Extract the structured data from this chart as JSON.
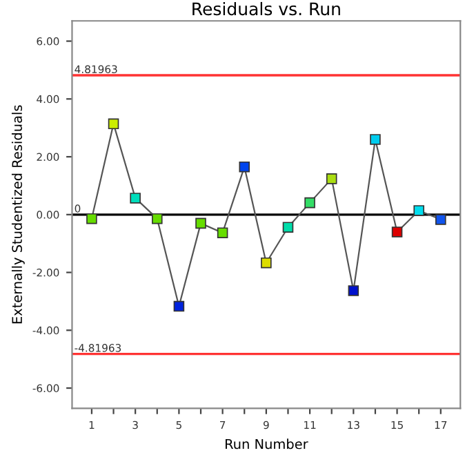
{
  "chart_data": {
    "type": "line",
    "title": "Residuals vs. Run",
    "xlabel": "Run Number",
    "ylabel": "Externally Studentized Residuals",
    "x": [
      1,
      2,
      3,
      4,
      5,
      6,
      7,
      8,
      9,
      10,
      11,
      12,
      13,
      14,
      15,
      16,
      17
    ],
    "series": [
      {
        "color": "#555555",
        "values": [
          -0.14,
          3.14,
          0.57,
          -0.14,
          -3.17,
          -0.3,
          -0.63,
          1.65,
          -1.67,
          -0.44,
          0.41,
          1.24,
          -2.63,
          2.6,
          -0.6,
          0.14,
          -0.17
        ],
        "colors": [
          "#66dd00",
          "#ccee00",
          "#00ddbb",
          "#66dd00",
          "#0022dd",
          "#66dd00",
          "#66dd00",
          "#0044ee",
          "#dddd00",
          "#00ddaa",
          "#33dd66",
          "#aadd11",
          "#0011cc",
          "#00ccee",
          "#dd0000",
          "#00ddee",
          "#1155ee"
        ]
      }
    ],
    "marker": "square",
    "xlim": [
      0.1,
      17.9
    ],
    "xticks": [
      1,
      {
        "value": 2,
        "label": null
      },
      3,
      {
        "value": 4,
        "label": null
      },
      5,
      {
        "value": 6,
        "label": null
      },
      7,
      {
        "value": 8,
        "label": null
      },
      9,
      {
        "value": 10,
        "label": null
      },
      11,
      {
        "value": 12,
        "label": null
      },
      13,
      {
        "value": 14,
        "label": null
      },
      15,
      {
        "value": 16,
        "label": null
      },
      17
    ],
    "ylim": [
      -6.7,
      6.7
    ],
    "yticks": [
      {
        "value": -6,
        "label": "-6.00"
      },
      {
        "value": -4,
        "label": "-4.00"
      },
      {
        "value": -2,
        "label": "-2.00"
      },
      {
        "value": 0,
        "label": "0.00"
      },
      {
        "value": 2,
        "label": "2.00"
      },
      {
        "value": 4,
        "label": "4.00"
      },
      {
        "value": 6,
        "label": "6.00"
      }
    ],
    "ref_lines": [
      {
        "axis": "y",
        "value": 4.81963,
        "label": "4.81963",
        "color": "#ff3333"
      },
      {
        "axis": "y",
        "value": 0,
        "label": "0",
        "color": "#000000"
      },
      {
        "axis": "y",
        "value": -4.81963,
        "label": "-4.81963",
        "color": "#ff3333"
      }
    ],
    "grid": false,
    "legend": false
  }
}
